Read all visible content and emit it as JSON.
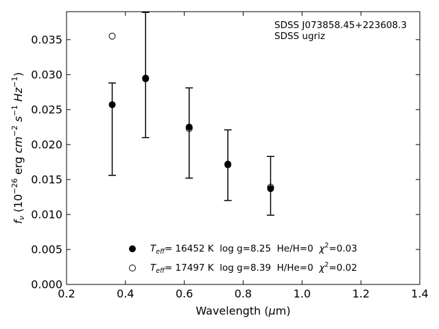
{
  "chart_data": {
    "type": "scatter",
    "annotation": {
      "line1": "SDSS J073858.45+223608.3",
      "line2": "SDSS ugriz"
    },
    "xlabel": "Wavelength (μm)",
    "ylabel": "f_ν (10^-26 erg cm^-2 s^-1 Hz^-1)",
    "xlim": [
      0.2,
      1.4
    ],
    "ylim": [
      0.0,
      0.039
    ],
    "xticks": [
      "0.2",
      "0.4",
      "0.6",
      "0.8",
      "1.0",
      "1.2",
      "1.4"
    ],
    "yticks": [
      "0.000",
      "0.005",
      "0.010",
      "0.015",
      "0.020",
      "0.025",
      "0.030",
      "0.035"
    ],
    "tick_direction": "in",
    "grid": false,
    "legend_position": "bottom-center",
    "observed": {
      "x": [
        0.3551,
        0.4686,
        0.6166,
        0.748,
        0.8932
      ],
      "y": [
        0.0257,
        0.0295,
        0.0224,
        0.0172,
        0.0139
      ],
      "yerr_low": [
        0.0156,
        0.021,
        0.0152,
        0.012,
        0.0099
      ],
      "yerr_high": [
        0.0288,
        0.0389,
        0.0281,
        0.0221,
        0.0183
      ]
    },
    "series": [
      {
        "legend": "T_eff= 16452 K  log g=8.25  He/H=0  χ²=0.03",
        "marker": "filled-circle",
        "x": [
          0.3551,
          0.4686,
          0.6166,
          0.748,
          0.8932
        ],
        "y": [
          0.0257,
          0.0295,
          0.0225,
          0.0172,
          0.0137
        ]
      },
      {
        "legend": "T_eff= 17497 K  log g=8.39  H/He=0  χ²=0.02",
        "marker": "open-circle",
        "x": [
          0.3551,
          0.4686,
          0.6166,
          0.748,
          0.8932
        ],
        "y": [
          0.0355,
          0.0294,
          0.0223,
          0.0171,
          0.0139
        ]
      }
    ],
    "legend": {
      "filled": {
        "pre": "T",
        "sub": "eff",
        "mid": "= 16452 K  log g=8.25  He/H=0  ",
        "chi": "χ",
        "sup": "2",
        "post": "=0.03"
      },
      "open": {
        "pre": "T",
        "sub": "eff",
        "mid": "= 17497 K  log g=8.39  H/He=0  ",
        "chi": "χ",
        "sup": "2",
        "post": "=0.02"
      }
    },
    "xlabel_parts": {
      "pre": "Wavelength (",
      "mu": "μ",
      "post": "m)"
    },
    "ylabel_parts": {
      "f": "f",
      "nu": "ν",
      "a": " (10",
      "e1": "−26",
      "b": " erg ",
      "cm": "cm",
      "e2": "−2",
      "s": " s",
      "e3": "−1",
      "hz": " Hz",
      "e4": "−1",
      "c": ")"
    },
    "colors": {
      "marker": "#000000",
      "axis": "#000000",
      "background": "#ffffff"
    }
  }
}
